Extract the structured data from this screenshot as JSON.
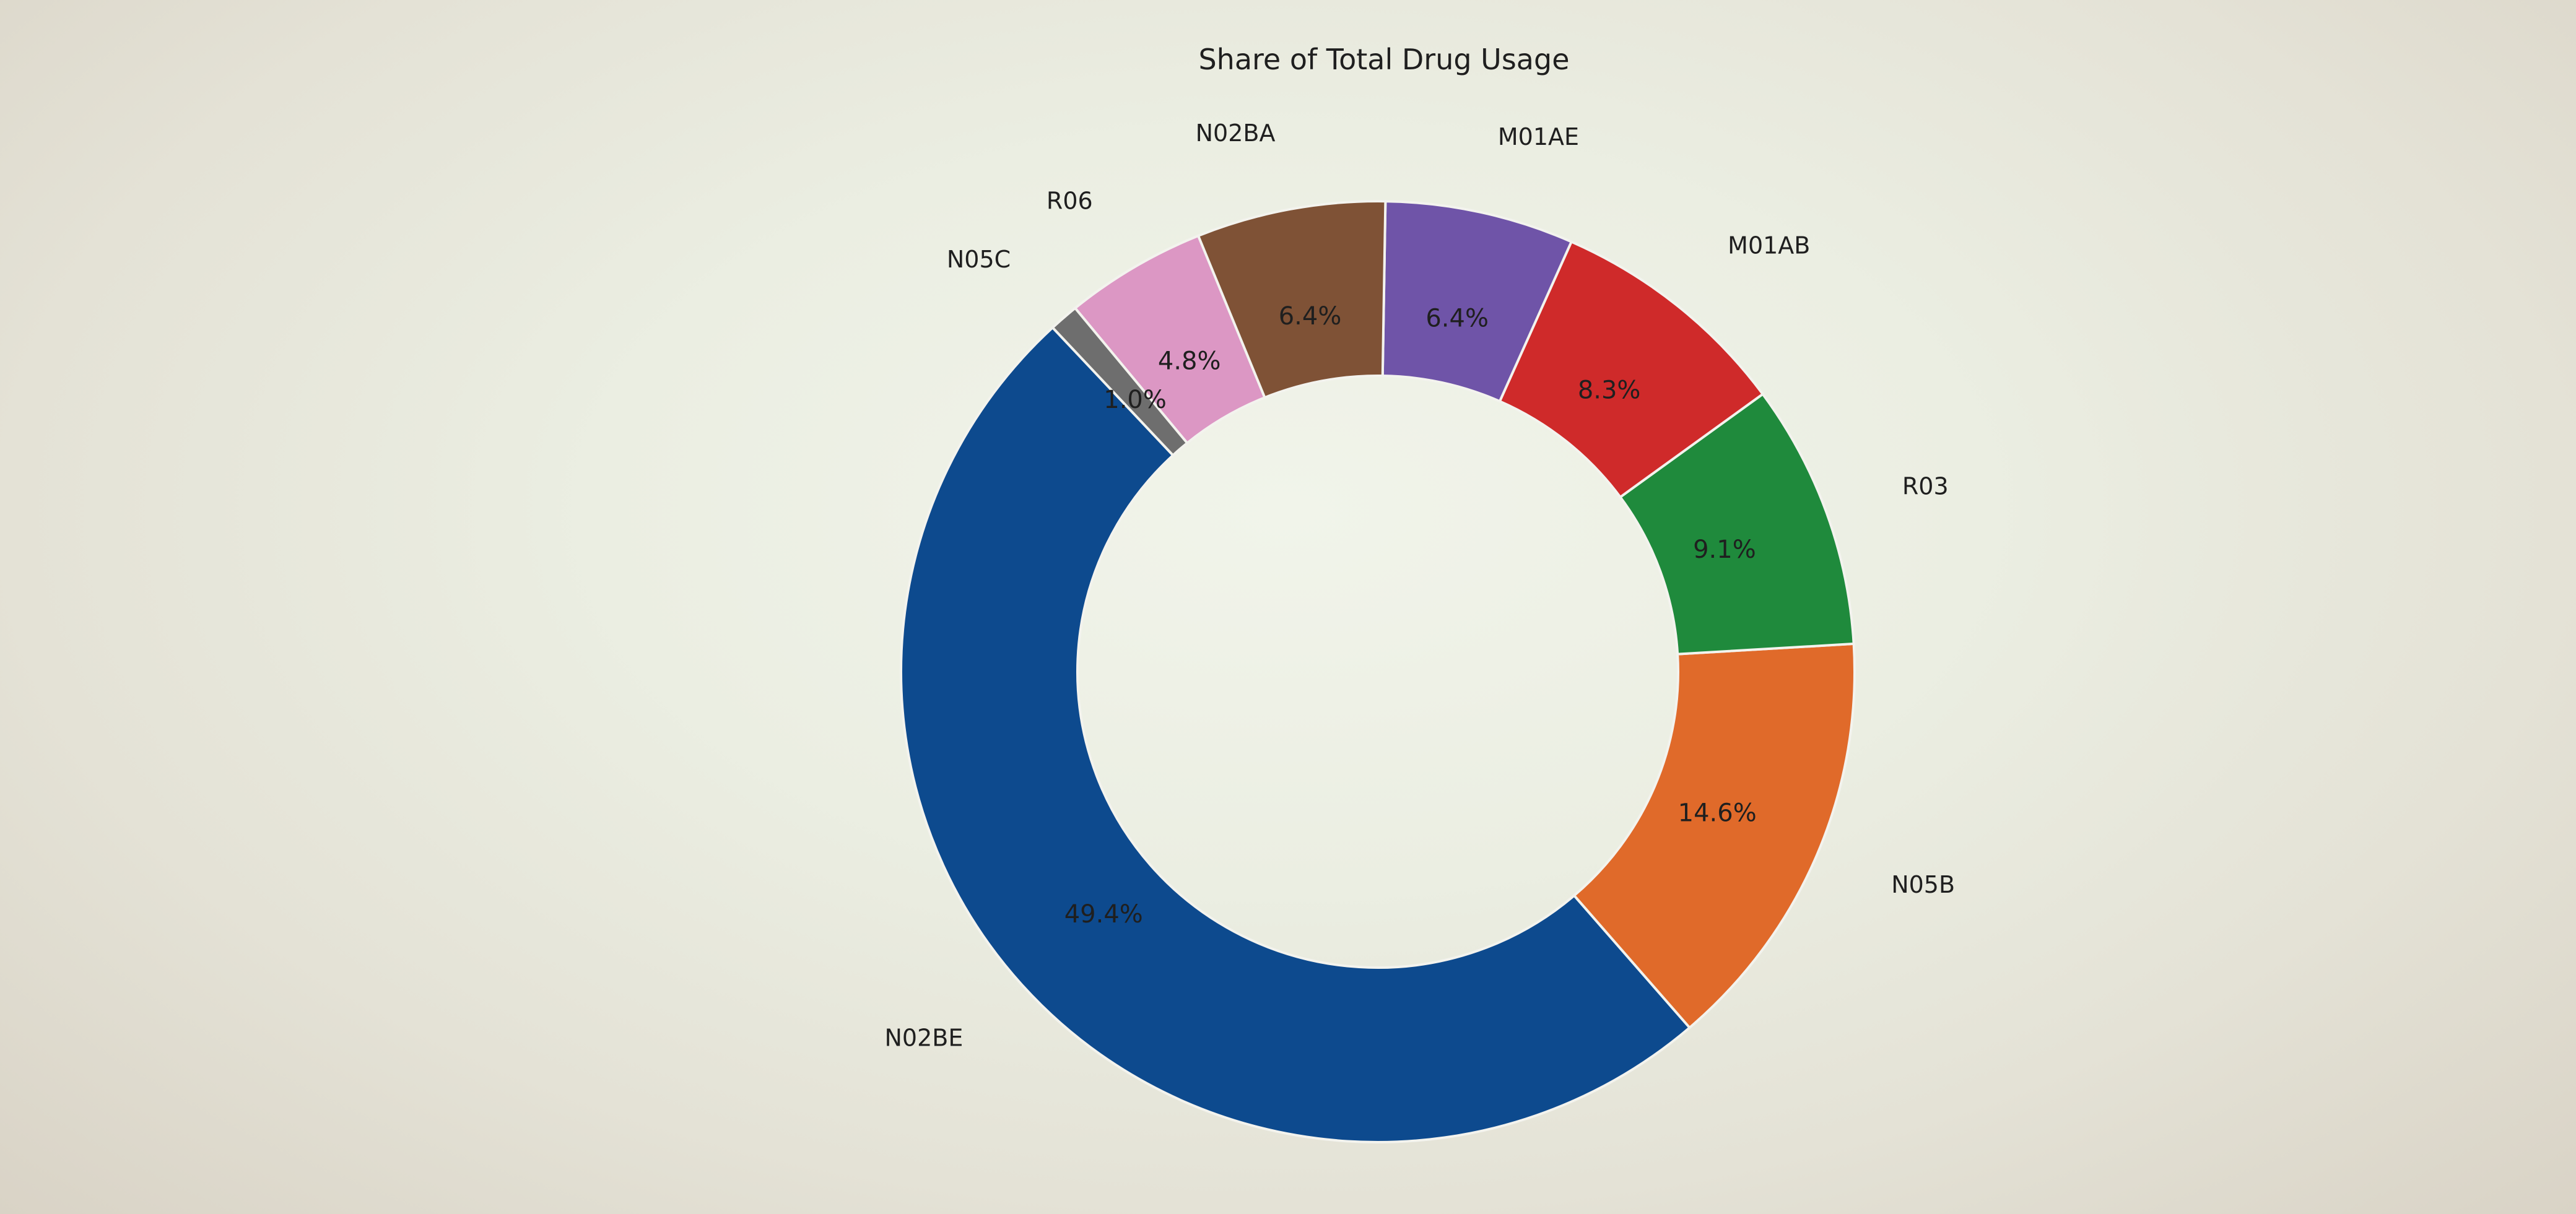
{
  "chart_data": {
    "type": "pie",
    "variant": "donut",
    "title": "Share of Total Drug Usage",
    "slices": [
      {
        "label": "N02BE",
        "value": 49.4,
        "value_label": "49.4%",
        "color": "#0d4a8e"
      },
      {
        "label": "N05B",
        "value": 14.6,
        "value_label": "14.6%",
        "color": "#e06a2a"
      },
      {
        "label": "R03",
        "value": 9.1,
        "value_label": "9.1%",
        "color": "#1f8a3c"
      },
      {
        "label": "M01AB",
        "value": 8.3,
        "value_label": "8.3%",
        "color": "#cf2a2a"
      },
      {
        "label": "M01AE",
        "value": 6.4,
        "value_label": "6.4%",
        "color": "#6f54a8"
      },
      {
        "label": "N02BA",
        "value": 6.4,
        "value_label": "6.4%",
        "color": "#7f5236"
      },
      {
        "label": "R06",
        "value": 4.8,
        "value_label": "4.8%",
        "color": "#dc97c4"
      },
      {
        "label": "N05C",
        "value": 1.0,
        "value_label": "1.0%",
        "color": "#6e6e6e"
      }
    ],
    "legend": "none"
  }
}
